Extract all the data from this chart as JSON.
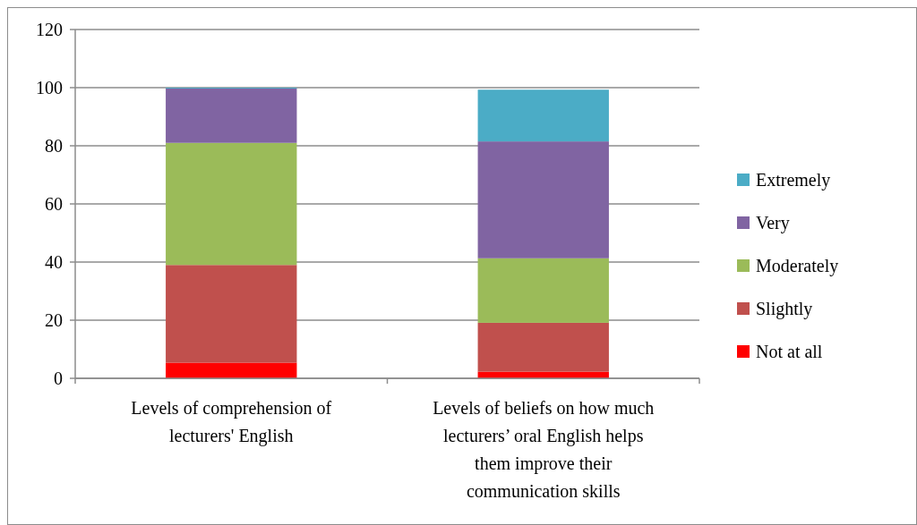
{
  "chart_data": {
    "type": "bar",
    "stacked": true,
    "categories": [
      "Levels of comprehension of lecturers' English",
      "Levels of beliefs on how much lecturers’ oral English helps them improve their communication skills"
    ],
    "series": [
      {
        "name": "Not at all",
        "color": "#ff0000",
        "values": [
          5.4,
          2.3
        ]
      },
      {
        "name": "Slightly",
        "color": "#c0504d",
        "values": [
          33.6,
          16.8
        ]
      },
      {
        "name": "Moderately",
        "color": "#9bbb59",
        "values": [
          42,
          22.2
        ]
      },
      {
        "name": "Very",
        "color": "#8064a2",
        "values": [
          18.7,
          40.2
        ]
      },
      {
        "name": "Extremely",
        "color": "#4bacc6",
        "values": [
          0.3,
          17.8
        ]
      }
    ],
    "ylim": [
      0,
      120
    ],
    "yticks": [
      0,
      20,
      40,
      60,
      80,
      100,
      120
    ],
    "grid": "y",
    "legend": "right"
  }
}
